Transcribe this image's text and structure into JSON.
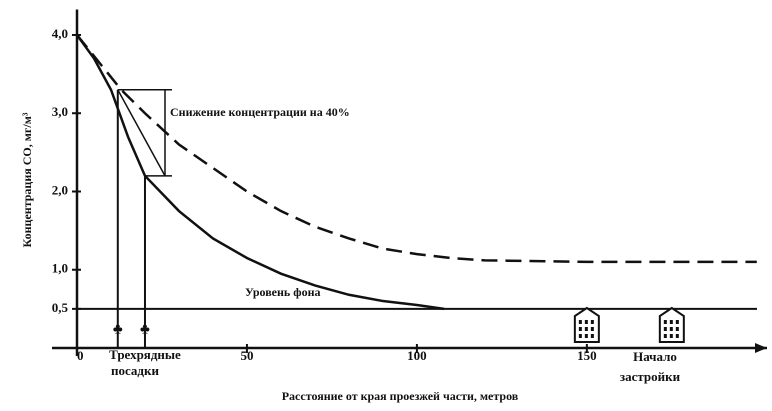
{
  "chart_data": {
    "type": "line",
    "y_label": "Концентрация СО, мг/м³",
    "x_label": "Расстояние от края проезжей части, метров",
    "xlim": [
      0,
      203
    ],
    "ylim": [
      0,
      4.3
    ],
    "xticks": [
      0,
      50,
      100,
      150
    ],
    "yticks": [
      {
        "value": 0.5,
        "label": "0,5"
      },
      {
        "value": 1.0,
        "label": "1,0"
      },
      {
        "value": 2.0,
        "label": "2,0"
      },
      {
        "value": 3.0,
        "label": "3,0"
      },
      {
        "value": 4.0,
        "label": "4,0"
      }
    ],
    "series": [
      {
        "color": "#111111",
        "style": "dashed",
        "x": [
          0,
          13,
          20,
          30,
          40,
          50,
          60,
          70,
          80,
          90,
          100,
          110,
          120,
          150,
          200
        ],
        "values": [
          4.0,
          3.3,
          3.0,
          2.6,
          2.3,
          2.0,
          1.75,
          1.55,
          1.4,
          1.27,
          1.2,
          1.15,
          1.12,
          1.1,
          1.1
        ]
      },
      {
        "color": "#111111",
        "style": "solid",
        "x": [
          0,
          5,
          10,
          15,
          20,
          30,
          40,
          50,
          60,
          70,
          80,
          90,
          100,
          108
        ],
        "values": [
          4.0,
          3.7,
          3.3,
          2.7,
          2.2,
          1.75,
          1.4,
          1.15,
          0.95,
          0.8,
          0.68,
          0.6,
          0.55,
          0.5
        ]
      }
    ],
    "background_level": {
      "label": "Уровень фона",
      "value": 0.5
    },
    "reduction": {
      "label": "Снижение концентрации на 40%",
      "top": 3.3,
      "bottom": 2.2
    },
    "plantings": {
      "label": [
        "Трехрядные",
        "посадки"
      ],
      "x": [
        12,
        20
      ]
    },
    "buildings": {
      "label": [
        "Начало",
        "застройки"
      ],
      "x": [
        150,
        175
      ]
    }
  }
}
